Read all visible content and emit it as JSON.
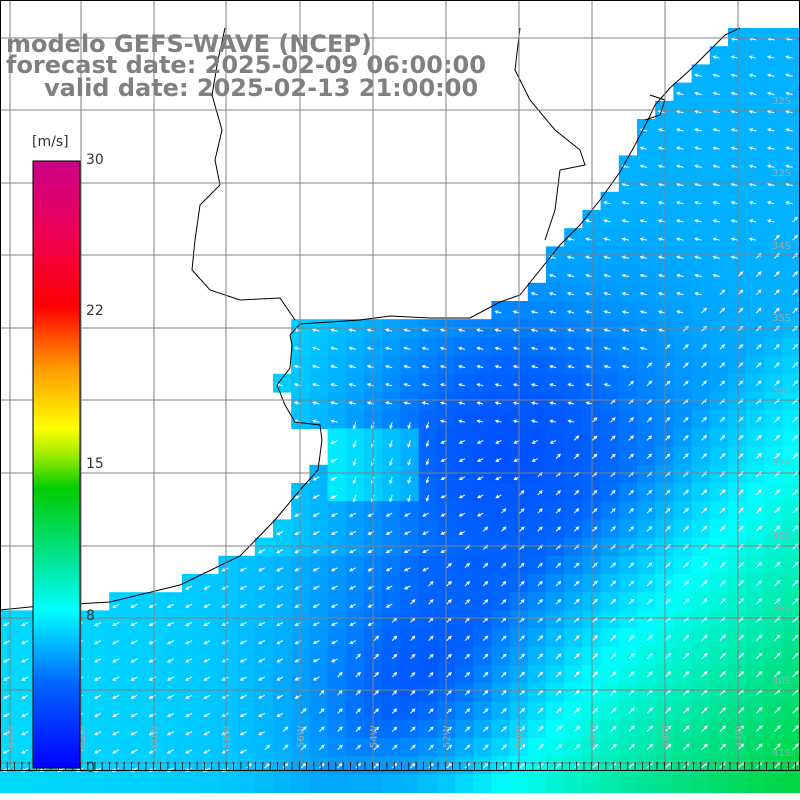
{
  "title": {
    "line1": "modelo GEFS-WAVE (NCEP)",
    "line2": "forecast date: 2025-02-09 06:00:00",
    "line3": "valid date: 2025-02-13 21:00:00"
  },
  "colorbar": {
    "unit": "[m/s]",
    "ticks": [
      "30",
      "22",
      "15",
      "8",
      "0"
    ],
    "min": 0,
    "max": 30
  },
  "map": {
    "lon_labels": [
      "64W",
      "62W",
      "60W",
      "58W",
      "56W",
      "54W",
      "52W",
      "50W",
      "48W",
      "46W",
      "44W"
    ],
    "lat_labels": [
      "32S",
      "33S",
      "34S",
      "35S",
      "36S",
      "37S",
      "38S",
      "39S",
      "40S",
      "41S"
    ],
    "colors": {
      "land": "#ffffff",
      "grid": "#808080",
      "coast": "#000000",
      "arrow": "#ffffff"
    }
  }
}
